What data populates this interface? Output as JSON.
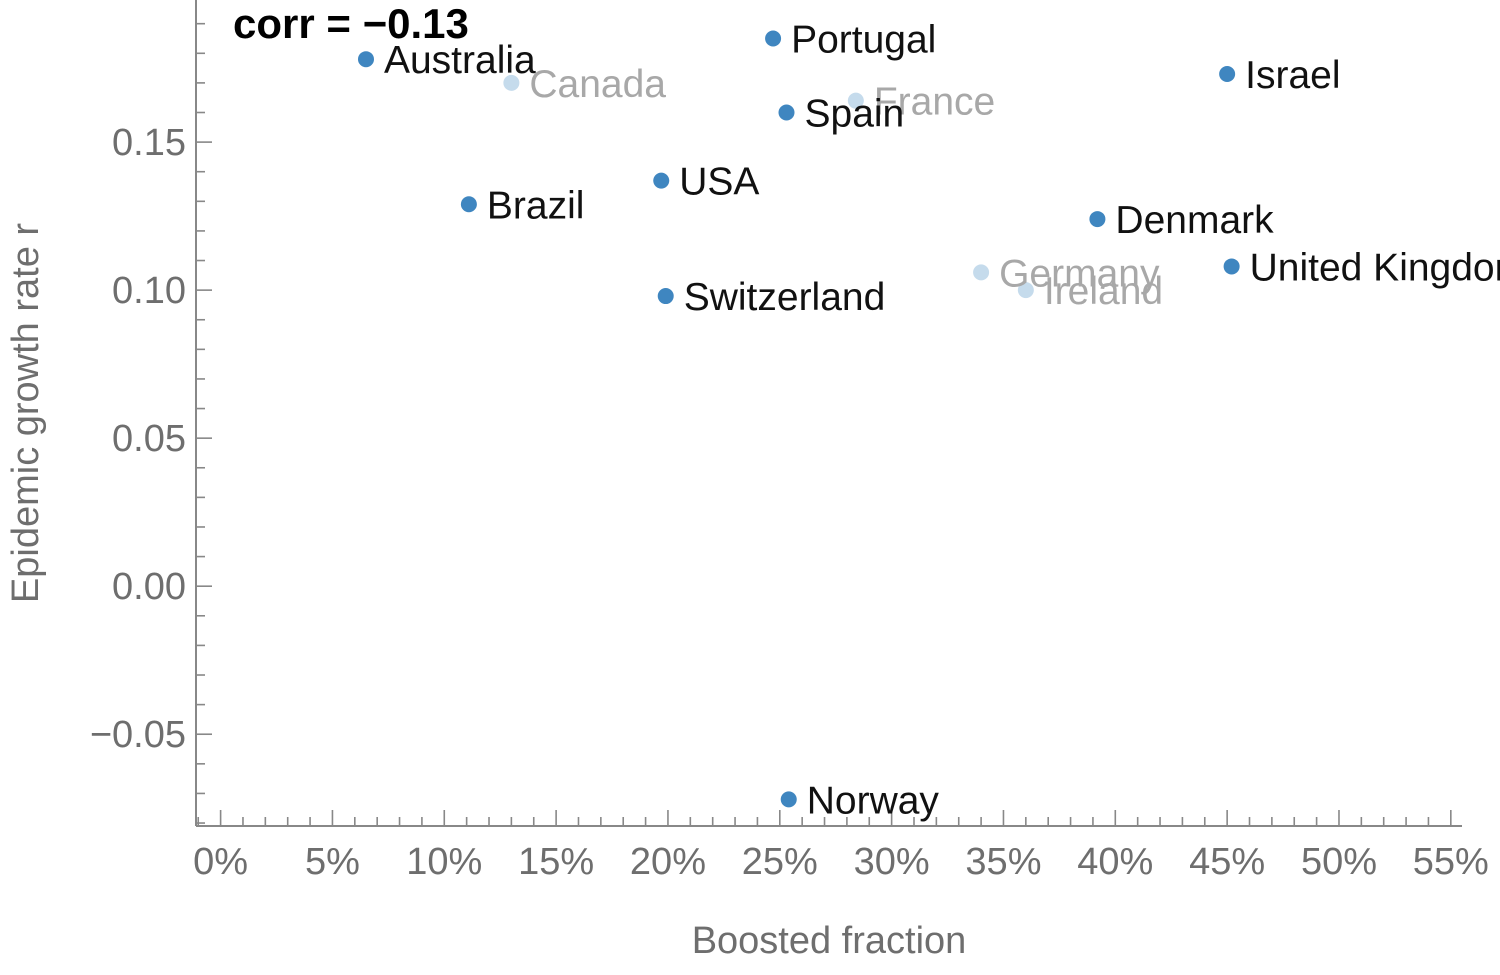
{
  "chart_data": {
    "type": "scatter",
    "annotation": "corr = −0.13",
    "xlabel": "Boosted fraction",
    "ylabel": "Epidemic growth rate r",
    "xlim": [
      -0.011,
      0.555
    ],
    "ylim": [
      -0.081,
      0.198
    ],
    "x_ticks": [
      {
        "value": 0.0,
        "label": "0%"
      },
      {
        "value": 0.05,
        "label": "5%"
      },
      {
        "value": 0.1,
        "label": "10%"
      },
      {
        "value": 0.15,
        "label": "15%"
      },
      {
        "value": 0.2,
        "label": "20%"
      },
      {
        "value": 0.25,
        "label": "25%"
      },
      {
        "value": 0.3,
        "label": "30%"
      },
      {
        "value": 0.35,
        "label": "35%"
      },
      {
        "value": 0.4,
        "label": "40%"
      },
      {
        "value": 0.45,
        "label": "45%"
      },
      {
        "value": 0.5,
        "label": "50%"
      },
      {
        "value": 0.55,
        "label": "55%"
      }
    ],
    "y_ticks": [
      {
        "value": 0.15,
        "label": "0.15"
      },
      {
        "value": 0.1,
        "label": "0.10"
      },
      {
        "value": 0.05,
        "label": "0.05"
      },
      {
        "value": 0.0,
        "label": "0.00"
      },
      {
        "value": -0.05,
        "label": "−0.05"
      }
    ],
    "grid": false,
    "colors": {
      "point": "#3f86c0",
      "point_faded": "#c5dbec",
      "label": "#111111",
      "label_faded": "#a8a8a8",
      "axis": "#888888"
    },
    "points": [
      {
        "name": "Australia",
        "x": 0.065,
        "y": 0.178,
        "faded": false
      },
      {
        "name": "Canada",
        "x": 0.13,
        "y": 0.17,
        "faded": true
      },
      {
        "name": "Portugal",
        "x": 0.247,
        "y": 0.185,
        "faded": false
      },
      {
        "name": "France",
        "x": 0.284,
        "y": 0.164,
        "faded": true
      },
      {
        "name": "Spain",
        "x": 0.253,
        "y": 0.16,
        "faded": false
      },
      {
        "name": "Israel",
        "x": 0.45,
        "y": 0.173,
        "faded": false
      },
      {
        "name": "USA",
        "x": 0.197,
        "y": 0.137,
        "faded": false
      },
      {
        "name": "Brazil",
        "x": 0.111,
        "y": 0.129,
        "faded": false
      },
      {
        "name": "Denmark",
        "x": 0.392,
        "y": 0.124,
        "faded": false
      },
      {
        "name": "Germany",
        "x": 0.34,
        "y": 0.106,
        "faded": true
      },
      {
        "name": "Ireland",
        "x": 0.36,
        "y": 0.1,
        "faded": true
      },
      {
        "name": "United Kingdom",
        "x": 0.452,
        "y": 0.108,
        "faded": false
      },
      {
        "name": "Switzerland",
        "x": 0.199,
        "y": 0.098,
        "faded": false
      },
      {
        "name": "Norway",
        "x": 0.254,
        "y": -0.072,
        "faded": false
      }
    ]
  }
}
